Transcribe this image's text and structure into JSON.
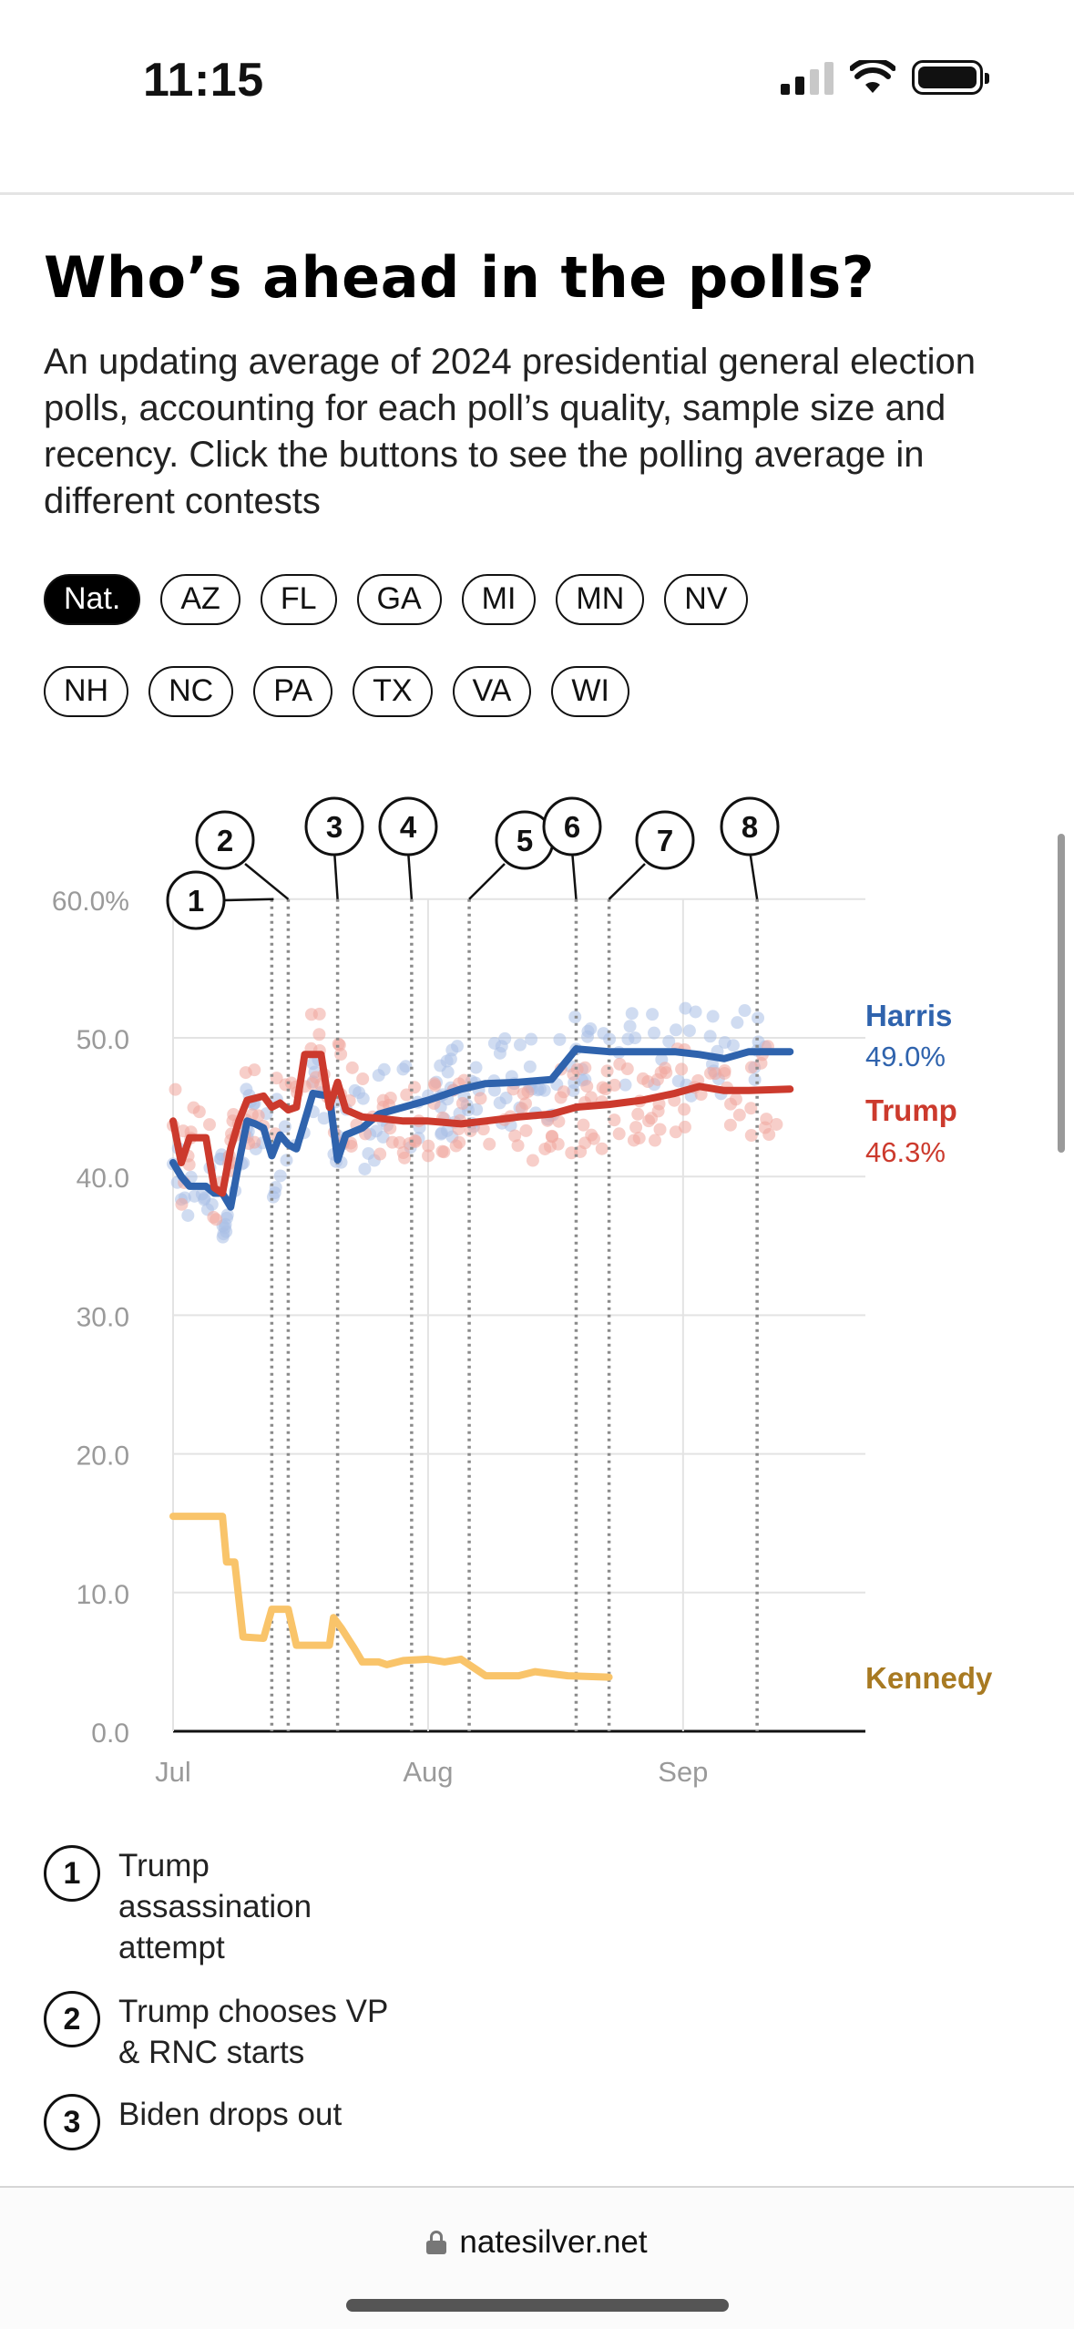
{
  "status_bar": {
    "time": "11:15"
  },
  "title": "Who’s ahead in the polls?",
  "description": "An updating average of 2024 presidential general election polls, accounting for each poll’s quality, sample size and recency. Click the buttons to see the polling average in different contests",
  "filters": {
    "row1": [
      {
        "label": "Nat.",
        "active": true
      },
      {
        "label": "AZ"
      },
      {
        "label": "FL"
      },
      {
        "label": "GA"
      },
      {
        "label": "MI"
      },
      {
        "label": "MN"
      },
      {
        "label": "NV"
      }
    ],
    "row2": [
      {
        "label": "NH"
      },
      {
        "label": "NC"
      },
      {
        "label": "PA"
      },
      {
        "label": "TX"
      },
      {
        "label": "VA"
      },
      {
        "label": "WI"
      }
    ]
  },
  "chart_data": {
    "type": "line",
    "ylim": [
      0,
      60
    ],
    "y_ticks": [
      "0.0",
      "10.0",
      "20.0",
      "30.0",
      "40.0",
      "50.0",
      "60.0%"
    ],
    "x_ticks": [
      {
        "label": "Jul",
        "day": 0
      },
      {
        "label": "Aug",
        "day": 31
      },
      {
        "label": "Sep",
        "day": 62
      }
    ],
    "series": [
      {
        "name": "Harris",
        "value_label": "49.0%",
        "color": "#2f63ad",
        "points": [
          [
            0,
            41
          ],
          [
            1,
            40
          ],
          [
            2,
            39.3
          ],
          [
            4,
            39.3
          ],
          [
            5,
            38.8
          ],
          [
            6,
            38.8
          ],
          [
            7,
            37.8
          ],
          [
            8,
            41
          ],
          [
            9,
            44
          ],
          [
            10,
            43.8
          ],
          [
            11,
            43.5
          ],
          [
            12,
            41.5
          ],
          [
            13,
            43
          ],
          [
            14,
            42.3
          ],
          [
            15,
            42
          ],
          [
            17,
            46
          ],
          [
            19,
            45.8
          ],
          [
            20,
            41.2
          ],
          [
            21,
            43
          ],
          [
            23,
            43.5
          ],
          [
            25,
            44.5
          ],
          [
            28,
            45
          ],
          [
            31,
            45.5
          ],
          [
            35,
            46.3
          ],
          [
            38,
            46.7
          ],
          [
            42,
            46.8
          ],
          [
            46,
            47
          ],
          [
            49,
            49.2
          ],
          [
            53,
            49
          ],
          [
            57,
            49
          ],
          [
            61,
            49
          ],
          [
            64,
            48.8
          ],
          [
            67,
            48.5
          ],
          [
            70,
            49
          ],
          [
            75,
            49
          ]
        ]
      },
      {
        "name": "Trump",
        "value_label": "46.3%",
        "color": "#cc3a2d",
        "points": [
          [
            0,
            44
          ],
          [
            1,
            41
          ],
          [
            2,
            42.8
          ],
          [
            4,
            42.8
          ],
          [
            5,
            39.2
          ],
          [
            6,
            38.8
          ],
          [
            7,
            42
          ],
          [
            8,
            44
          ],
          [
            9,
            45.5
          ],
          [
            11,
            45.8
          ],
          [
            12,
            45
          ],
          [
            13,
            45.3
          ],
          [
            14,
            44.8
          ],
          [
            15,
            45
          ],
          [
            16,
            48.8
          ],
          [
            18,
            48.8
          ],
          [
            19,
            45
          ],
          [
            20,
            46.8
          ],
          [
            21,
            44.8
          ],
          [
            23,
            44.3
          ],
          [
            25,
            44.2
          ],
          [
            28,
            44
          ],
          [
            31,
            44
          ],
          [
            35,
            43.8
          ],
          [
            38,
            44
          ],
          [
            42,
            44.3
          ],
          [
            46,
            44.5
          ],
          [
            49,
            45
          ],
          [
            53,
            45.2
          ],
          [
            57,
            45.5
          ],
          [
            61,
            46
          ],
          [
            64,
            46.5
          ],
          [
            67,
            46.2
          ],
          [
            70,
            46.2
          ],
          [
            75,
            46.3
          ]
        ]
      },
      {
        "name": "Kennedy",
        "color": "#f9c46a",
        "label_color": "#a87a22",
        "points": [
          [
            0,
            15.5
          ],
          [
            6,
            15.5
          ],
          [
            6.5,
            12.2
          ],
          [
            7.5,
            12.2
          ],
          [
            8.5,
            6.8
          ],
          [
            11,
            6.7
          ],
          [
            12,
            8.8
          ],
          [
            14,
            8.8
          ],
          [
            15,
            6.2
          ],
          [
            19,
            6.2
          ],
          [
            19.5,
            8.2
          ],
          [
            20.5,
            7.4
          ],
          [
            22,
            6
          ],
          [
            23,
            5
          ],
          [
            25,
            5
          ],
          [
            26,
            4.8
          ],
          [
            28,
            5.1
          ],
          [
            31,
            5.2
          ],
          [
            33,
            5
          ],
          [
            35,
            5.2
          ],
          [
            37,
            4.4
          ],
          [
            38,
            4
          ],
          [
            42,
            4
          ],
          [
            44,
            4.3
          ],
          [
            48,
            4
          ],
          [
            53,
            3.9
          ]
        ]
      }
    ],
    "events": [
      {
        "num": "1",
        "day": 12,
        "label": "Trump assassination attempt"
      },
      {
        "num": "2",
        "day": 14,
        "label": "Trump chooses VP & RNC starts"
      },
      {
        "num": "3",
        "day": 20,
        "label": "Biden drops out"
      },
      {
        "num": "4",
        "day": 29
      },
      {
        "num": "5",
        "day": 36
      },
      {
        "num": "6",
        "day": 49
      },
      {
        "num": "7",
        "day": 53
      },
      {
        "num": "8",
        "day": 71
      }
    ]
  },
  "browser": {
    "url": "natesilver.net"
  }
}
